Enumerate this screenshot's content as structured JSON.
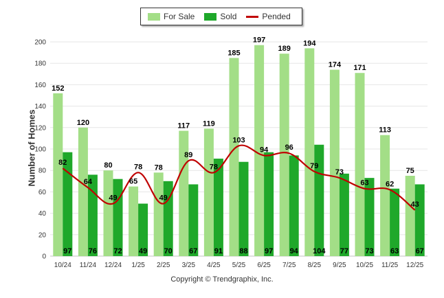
{
  "chart_data": {
    "type": "bar",
    "title": "",
    "xlabel": "",
    "ylabel": "Number of Homes",
    "ylim": [
      0,
      200
    ],
    "yticks": [
      0,
      20,
      40,
      60,
      80,
      100,
      120,
      140,
      160,
      180,
      200
    ],
    "categories": [
      "10/24",
      "11/24",
      "12/24",
      "1/25",
      "2/25",
      "3/25",
      "4/25",
      "5/25",
      "6/25",
      "7/25",
      "8/25",
      "9/25",
      "10/25",
      "11/25",
      "12/25"
    ],
    "series": [
      {
        "name": "For Sale",
        "kind": "bar",
        "color": "#a3de87",
        "values": [
          152,
          120,
          80,
          65,
          78,
          117,
          119,
          185,
          197,
          189,
          194,
          174,
          171,
          113,
          75
        ]
      },
      {
        "name": "Sold",
        "kind": "bar",
        "color": "#1fa82a",
        "values": [
          97,
          76,
          72,
          49,
          70,
          67,
          91,
          88,
          97,
          94,
          104,
          77,
          73,
          63,
          67
        ]
      },
      {
        "name": "Pended",
        "kind": "line",
        "color": "#c00000",
        "values": [
          82,
          64,
          49,
          78,
          49,
          89,
          78,
          103,
          94,
          96,
          79,
          73,
          63,
          62,
          43
        ]
      }
    ],
    "legend": "top-center"
  },
  "copyright": "Copyright © Trendgraphix, Inc."
}
